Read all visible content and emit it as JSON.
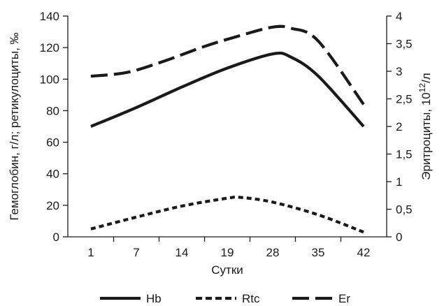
{
  "chart_data": {
    "type": "line",
    "x_ticks": [
      "1",
      "7",
      "14",
      "19",
      "28",
      "35",
      "42"
    ],
    "xlabel": "Сутки",
    "ylabel_left": "Гемоглобин, г/л; ретикулоциты, ‰",
    "ylabel_right_main": "Эритроциты, 10",
    "ylabel_right_sup": "12",
    "ylabel_right_tail": "/л",
    "ylim_left": [
      0,
      140
    ],
    "ylim_right": [
      0,
      4
    ],
    "y_ticks_left": [
      "0",
      "20",
      "40",
      "60",
      "80",
      "100",
      "120",
      "140"
    ],
    "y_ticks_right": [
      "0",
      "0,5",
      "1",
      "1,5",
      "2",
      "2,5",
      "3",
      "3,5",
      "4"
    ],
    "grid": false,
    "legend_position": "bottom",
    "series": [
      {
        "name": "Hb",
        "axis": "left",
        "style": "solid",
        "color": "#1a1a1a",
        "points": [
          [
            0,
            70
          ],
          [
            1,
            82
          ],
          [
            2,
            95
          ],
          [
            3,
            107
          ],
          [
            4,
            116
          ],
          [
            4.4,
            114
          ],
          [
            5,
            102
          ],
          [
            6,
            70
          ]
        ]
      },
      {
        "name": "Rtc",
        "axis": "left",
        "style": "dotted",
        "color": "#1a1a1a",
        "points": [
          [
            0,
            5
          ],
          [
            1,
            12.5
          ],
          [
            2,
            19.5
          ],
          [
            3,
            24.5
          ],
          [
            3.3,
            25
          ],
          [
            4,
            22
          ],
          [
            5,
            14
          ],
          [
            6,
            3
          ]
        ]
      },
      {
        "name": "Er",
        "axis": "right",
        "style": "dashed",
        "color": "#1a1a1a",
        "points": [
          [
            0,
            2.91
          ],
          [
            0.8,
            2.98
          ],
          [
            1.6,
            3.18
          ],
          [
            2.5,
            3.45
          ],
          [
            3.3,
            3.65
          ],
          [
            4,
            3.8
          ],
          [
            4.4,
            3.78
          ],
          [
            5,
            3.55
          ],
          [
            6,
            2.4
          ]
        ]
      }
    ]
  }
}
